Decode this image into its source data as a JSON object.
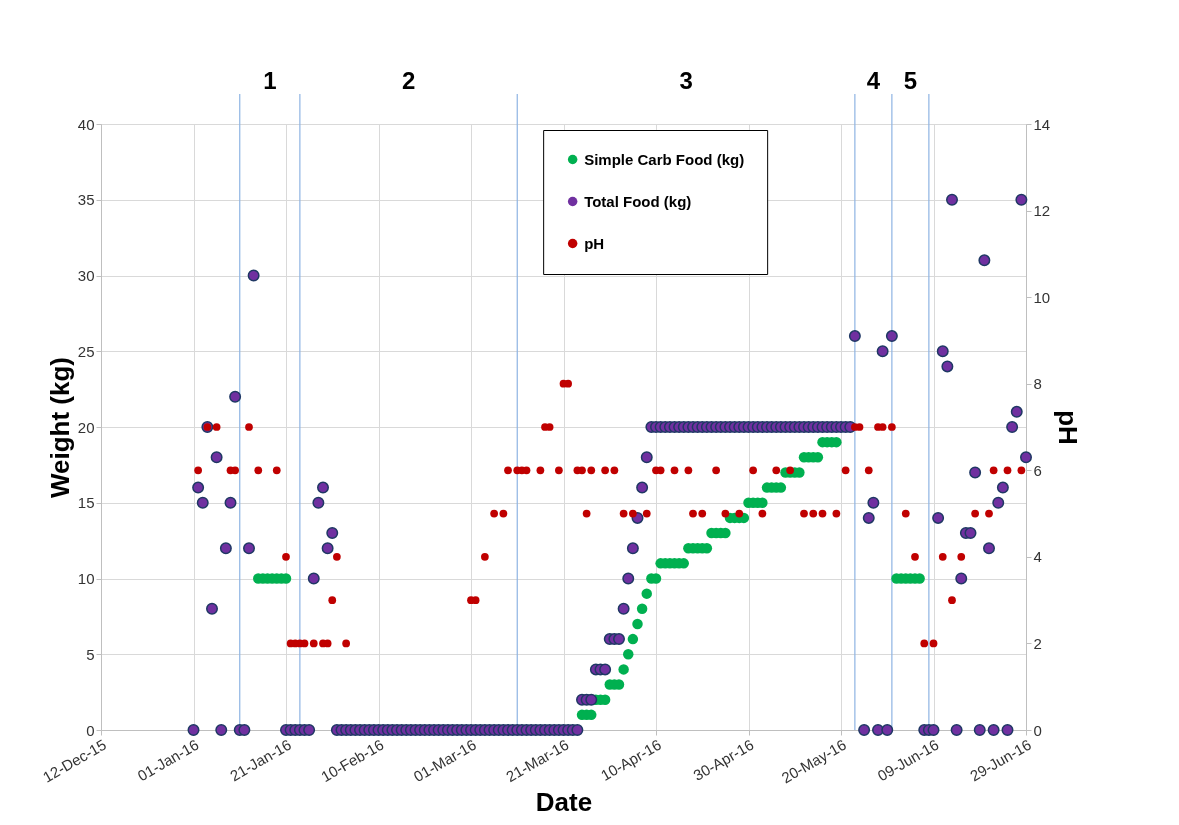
{
  "chart_data": {
    "type": "scatter",
    "xlabel": "Date",
    "ylabel": "Weight (kg)",
    "y2label": "pH",
    "xlim": [
      "2015-12-12",
      "2016-06-29"
    ],
    "xticks": [
      {
        "value": "2015-12-12",
        "label": "12-Dec-15"
      },
      {
        "value": "2016-01-01",
        "label": "01-Jan-16"
      },
      {
        "value": "2016-01-21",
        "label": "21-Jan-16"
      },
      {
        "value": "2016-02-10",
        "label": "10-Feb-16"
      },
      {
        "value": "2016-03-01",
        "label": "01-Mar-16"
      },
      {
        "value": "2016-03-21",
        "label": "21-Mar-16"
      },
      {
        "value": "2016-04-10",
        "label": "10-Apr-16"
      },
      {
        "value": "2016-04-30",
        "label": "30-Apr-16"
      },
      {
        "value": "2016-05-20",
        "label": "20-May-16"
      },
      {
        "value": "2016-06-09",
        "label": "09-Jun-16"
      },
      {
        "value": "2016-06-29",
        "label": "29-Jun-16"
      }
    ],
    "ylim": [
      0,
      40
    ],
    "yticks": [
      0,
      5,
      10,
      15,
      20,
      25,
      30,
      35,
      40
    ],
    "y2lim": [
      0,
      14
    ],
    "y2ticks": [
      0,
      2,
      4,
      6,
      8,
      10,
      12,
      14
    ],
    "grid": true,
    "legend": "top",
    "marker": "circle",
    "ref_lines": [
      {
        "axis": "x",
        "value": "2016-01-11",
        "color": "#8eb4e3"
      },
      {
        "axis": "x",
        "value": "2016-01-24",
        "color": "#8eb4e3"
      },
      {
        "axis": "x",
        "value": "2016-03-11",
        "color": "#8eb4e3"
      },
      {
        "axis": "x",
        "value": "2016-05-23",
        "color": "#8eb4e3"
      },
      {
        "axis": "x",
        "value": "2016-05-31",
        "color": "#8eb4e3"
      },
      {
        "axis": "x",
        "value": "2016-06-08",
        "color": "#8eb4e3"
      }
    ],
    "annotations": [
      "1",
      "2",
      "3",
      "4",
      "5"
    ],
    "x": [
      "2016-01-01",
      "2016-01-02",
      "2016-01-03",
      "2016-01-04",
      "2016-01-05",
      "2016-01-06",
      "2016-01-07",
      "2016-01-08",
      "2016-01-09",
      "2016-01-10",
      "2016-01-11",
      "2016-01-12",
      "2016-01-13",
      "2016-01-14",
      "2016-01-15",
      "2016-01-16",
      "2016-01-17",
      "2016-01-18",
      "2016-01-19",
      "2016-01-20",
      "2016-01-21",
      "2016-01-22",
      "2016-01-23",
      "2016-01-24",
      "2016-01-25",
      "2016-01-26",
      "2016-01-27",
      "2016-01-28",
      "2016-01-29",
      "2016-01-30",
      "2016-01-31",
      "2016-02-01",
      "2016-02-02",
      "2016-02-03",
      "2016-02-04",
      "2016-02-05",
      "2016-02-06",
      "2016-02-07",
      "2016-02-08",
      "2016-02-09",
      "2016-02-10",
      "2016-02-11",
      "2016-02-12",
      "2016-02-13",
      "2016-02-14",
      "2016-02-15",
      "2016-02-16",
      "2016-02-17",
      "2016-02-18",
      "2016-02-19",
      "2016-02-20",
      "2016-02-21",
      "2016-02-22",
      "2016-02-23",
      "2016-02-24",
      "2016-02-25",
      "2016-02-26",
      "2016-02-27",
      "2016-02-28",
      "2016-02-29",
      "2016-03-01",
      "2016-03-02",
      "2016-03-03",
      "2016-03-04",
      "2016-03-05",
      "2016-03-06",
      "2016-03-07",
      "2016-03-08",
      "2016-03-09",
      "2016-03-10",
      "2016-03-11",
      "2016-03-12",
      "2016-03-13",
      "2016-03-14",
      "2016-03-15",
      "2016-03-16",
      "2016-03-17",
      "2016-03-18",
      "2016-03-19",
      "2016-03-20",
      "2016-03-21",
      "2016-03-22",
      "2016-03-23",
      "2016-03-24",
      "2016-03-25",
      "2016-03-26",
      "2016-03-27",
      "2016-03-28",
      "2016-03-29",
      "2016-03-30",
      "2016-03-31",
      "2016-04-01",
      "2016-04-02",
      "2016-04-03",
      "2016-04-04",
      "2016-04-05",
      "2016-04-06",
      "2016-04-07",
      "2016-04-08",
      "2016-04-09",
      "2016-04-10",
      "2016-04-11",
      "2016-04-12",
      "2016-04-13",
      "2016-04-14",
      "2016-04-15",
      "2016-04-16",
      "2016-04-17",
      "2016-04-18",
      "2016-04-19",
      "2016-04-20",
      "2016-04-21",
      "2016-04-22",
      "2016-04-23",
      "2016-04-24",
      "2016-04-25",
      "2016-04-26",
      "2016-04-27",
      "2016-04-28",
      "2016-04-29",
      "2016-04-30",
      "2016-05-01",
      "2016-05-02",
      "2016-05-03",
      "2016-05-04",
      "2016-05-05",
      "2016-05-06",
      "2016-05-07",
      "2016-05-08",
      "2016-05-09",
      "2016-05-10",
      "2016-05-11",
      "2016-05-12",
      "2016-05-13",
      "2016-05-14",
      "2016-05-15",
      "2016-05-16",
      "2016-05-17",
      "2016-05-18",
      "2016-05-19",
      "2016-05-20",
      "2016-05-21",
      "2016-05-22",
      "2016-05-23",
      "2016-05-24",
      "2016-05-25",
      "2016-05-26",
      "2016-05-27",
      "2016-05-28",
      "2016-05-29",
      "2016-05-30",
      "2016-05-31",
      "2016-06-01",
      "2016-06-02",
      "2016-06-03",
      "2016-06-04",
      "2016-06-05",
      "2016-06-06",
      "2016-06-07",
      "2016-06-08",
      "2016-06-09",
      "2016-06-10",
      "2016-06-11",
      "2016-06-12",
      "2016-06-13",
      "2016-06-14",
      "2016-06-15",
      "2016-06-16",
      "2016-06-17",
      "2016-06-18",
      "2016-06-19",
      "2016-06-20",
      "2016-06-21",
      "2016-06-22",
      "2016-06-23",
      "2016-06-24",
      "2016-06-25",
      "2016-06-26",
      "2016-06-27",
      "2016-06-28",
      "2016-06-29"
    ],
    "series": [
      {
        "name": "Simple Carb Food (kg)",
        "color": "#00b050",
        "values": [
          null,
          null,
          null,
          null,
          null,
          null,
          null,
          null,
          null,
          null,
          null,
          null,
          null,
          null,
          10,
          10,
          10,
          10,
          10,
          10,
          10,
          null,
          null,
          null,
          null,
          null,
          null,
          null,
          null,
          null,
          null,
          null,
          null,
          null,
          null,
          null,
          null,
          null,
          null,
          null,
          null,
          null,
          null,
          null,
          null,
          null,
          null,
          null,
          null,
          null,
          null,
          null,
          null,
          null,
          null,
          null,
          null,
          null,
          null,
          null,
          null,
          null,
          null,
          null,
          null,
          null,
          null,
          null,
          null,
          null,
          null,
          null,
          null,
          null,
          null,
          null,
          null,
          null,
          null,
          null,
          null,
          null,
          null,
          null,
          1,
          1,
          1,
          2,
          2,
          2,
          3,
          3,
          3,
          4,
          5,
          6,
          7,
          8,
          9,
          10,
          10,
          11,
          11,
          11,
          11,
          11,
          11,
          12,
          12,
          12,
          12,
          12,
          13,
          13,
          13,
          13,
          14,
          14,
          14,
          14,
          15,
          15,
          15,
          15,
          16,
          16,
          16,
          16,
          17,
          17,
          17,
          17,
          18,
          18,
          18,
          18,
          19,
          19,
          19,
          19,
          null,
          null,
          null,
          null,
          null,
          null,
          null,
          null,
          null,
          null,
          null,
          null,
          10,
          10,
          10,
          10,
          10,
          10,
          null,
          null,
          null,
          null,
          null,
          null,
          null,
          null,
          null,
          null,
          null,
          null,
          null,
          null,
          null,
          null,
          null,
          null,
          null,
          null,
          null,
          null,
          null
        ]
      },
      {
        "name": "Total Food (kg)",
        "color": "#7030a0",
        "values": [
          0,
          16,
          15,
          20,
          8,
          18,
          0,
          12,
          15,
          22,
          0,
          0,
          12,
          30,
          null,
          null,
          null,
          null,
          null,
          null,
          0,
          0,
          0,
          0,
          0,
          0,
          10,
          15,
          16,
          12,
          13,
          0,
          0,
          0,
          0,
          0,
          0,
          0,
          0,
          0,
          0,
          0,
          0,
          0,
          0,
          0,
          0,
          0,
          0,
          0,
          0,
          0,
          0,
          0,
          0,
          0,
          0,
          0,
          0,
          0,
          0,
          0,
          0,
          0,
          0,
          0,
          0,
          0,
          0,
          0,
          0,
          0,
          0,
          0,
          0,
          0,
          0,
          0,
          0,
          0,
          0,
          0,
          0,
          0,
          2,
          2,
          2,
          4,
          4,
          4,
          6,
          6,
          6,
          8,
          10,
          12,
          14,
          16,
          18,
          20,
          20,
          20,
          20,
          20,
          20,
          20,
          20,
          20,
          20,
          20,
          20,
          20,
          20,
          20,
          20,
          20,
          20,
          20,
          20,
          20,
          20,
          20,
          20,
          20,
          20,
          20,
          20,
          20,
          20,
          20,
          20,
          20,
          20,
          20,
          20,
          20,
          20,
          20,
          20,
          20,
          20,
          20,
          20,
          26,
          null,
          0,
          14,
          15,
          0,
          25,
          0,
          26,
          null,
          null,
          null,
          null,
          null,
          null,
          0,
          0,
          0,
          14,
          25,
          24,
          35,
          0,
          10,
          13,
          13,
          17,
          0,
          31,
          12,
          0,
          15,
          16,
          0,
          20,
          21,
          35,
          18
        ]
      },
      {
        "name": "pH",
        "color": "#c00000",
        "axis": "y2",
        "values": [
          null,
          6,
          null,
          7,
          null,
          7,
          null,
          null,
          6,
          6,
          null,
          null,
          7,
          null,
          6,
          null,
          null,
          null,
          6,
          null,
          4,
          2,
          2,
          2,
          2,
          null,
          2,
          null,
          2,
          2,
          3,
          4,
          null,
          2,
          null,
          null,
          null,
          null,
          null,
          null,
          null,
          null,
          null,
          null,
          null,
          null,
          null,
          null,
          null,
          null,
          null,
          null,
          null,
          null,
          null,
          null,
          null,
          null,
          null,
          null,
          3,
          3,
          null,
          4,
          null,
          5,
          null,
          5,
          6,
          null,
          6,
          6,
          6,
          null,
          null,
          6,
          7,
          7,
          null,
          6,
          8,
          8,
          null,
          6,
          6,
          5,
          6,
          null,
          null,
          6,
          null,
          6,
          null,
          5,
          null,
          5,
          null,
          null,
          5,
          null,
          6,
          6,
          null,
          null,
          6,
          null,
          null,
          6,
          5,
          null,
          5,
          null,
          null,
          6,
          null,
          5,
          null,
          null,
          5,
          null,
          null,
          6,
          null,
          5,
          null,
          null,
          6,
          null,
          null,
          6,
          null,
          null,
          5,
          null,
          5,
          null,
          5,
          null,
          null,
          5,
          null,
          6,
          null,
          7,
          7,
          null,
          6,
          null,
          7,
          7,
          null,
          7,
          null,
          null,
          5,
          null,
          4,
          null,
          2,
          null,
          2,
          null,
          4,
          null,
          3,
          null,
          4,
          null,
          null,
          5,
          null,
          null,
          5,
          6,
          null,
          null,
          6,
          null,
          null,
          6,
          null
        ]
      }
    ]
  }
}
